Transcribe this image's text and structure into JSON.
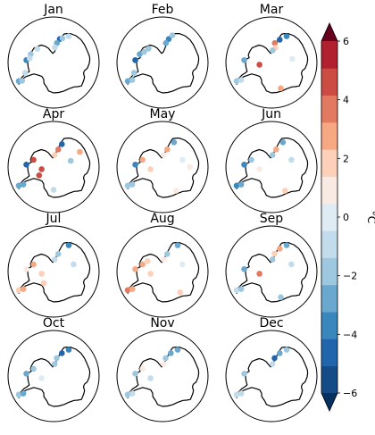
{
  "chart_data": {
    "type": "scatter",
    "panels": [
      {
        "title": "Jan",
        "points": [
          {
            "lon": -62,
            "lat": -64,
            "v": -2.5
          },
          {
            "lon": -60,
            "lat": -66,
            "v": -1.5
          },
          {
            "lon": -70,
            "lat": -70,
            "v": -1.0
          },
          {
            "lon": -95,
            "lat": -72,
            "v": -3.5
          },
          {
            "lon": -110,
            "lat": -74,
            "v": -2.0
          },
          {
            "lon": -100,
            "lat": -74,
            "v": -1.0
          },
          {
            "lon": -130,
            "lat": -76,
            "v": -1.0
          },
          {
            "lon": 165,
            "lat": -74,
            "v": -4.5
          },
          {
            "lon": 170,
            "lat": -77,
            "v": -2.5
          },
          {
            "lon": 160,
            "lat": -73,
            "v": -1.5
          },
          {
            "lon": 175,
            "lat": -80,
            "v": -1.0
          },
          {
            "lon": 150,
            "lat": -70,
            "v": -0.5
          }
        ]
      },
      {
        "title": "Feb",
        "points": [
          {
            "lon": -62,
            "lat": -64,
            "v": -3.0
          },
          {
            "lon": -60,
            "lat": -67,
            "v": -2.0
          },
          {
            "lon": -70,
            "lat": -70,
            "v": -1.5
          },
          {
            "lon": -95,
            "lat": -72,
            "v": -4.5
          },
          {
            "lon": -110,
            "lat": -74,
            "v": -3.0
          },
          {
            "lon": -120,
            "lat": -76,
            "v": -2.0
          },
          {
            "lon": -135,
            "lat": -77,
            "v": -1.5
          },
          {
            "lon": 165,
            "lat": -74,
            "v": -3.5
          },
          {
            "lon": 170,
            "lat": -77,
            "v": -2.5
          },
          {
            "lon": 160,
            "lat": -71,
            "v": -2.0
          }
        ]
      },
      {
        "title": "Mar",
        "points": [
          {
            "lon": -62,
            "lat": -64,
            "v": -1.5
          },
          {
            "lon": -60,
            "lat": -67,
            "v": -1.0
          },
          {
            "lon": -95,
            "lat": -72,
            "v": -3.0
          },
          {
            "lon": -80,
            "lat": -82,
            "v": 5.5
          },
          {
            "lon": 20,
            "lat": -72,
            "v": 3.0
          },
          {
            "lon": 100,
            "lat": -76,
            "v": 0.5
          },
          {
            "lon": 150,
            "lat": -70,
            "v": -3.5
          },
          {
            "lon": 160,
            "lat": -74,
            "v": -5.0
          },
          {
            "lon": 170,
            "lat": -77,
            "v": 4.5
          },
          {
            "lon": 165,
            "lat": -80,
            "v": 2.5
          },
          {
            "lon": 175,
            "lat": -82,
            "v": -2.0
          }
        ]
      },
      {
        "title": "Apr",
        "points": [
          {
            "lon": -62,
            "lat": -64,
            "v": -3.0
          },
          {
            "lon": -60,
            "lat": -67,
            "v": -2.5
          },
          {
            "lon": -95,
            "lat": -72,
            "v": -5.0
          },
          {
            "lon": -110,
            "lat": -76,
            "v": 5.5
          },
          {
            "lon": -80,
            "lat": -82,
            "v": 5.5
          },
          {
            "lon": -60,
            "lat": -79,
            "v": 5.5
          },
          {
            "lon": 0,
            "lat": -75,
            "v": -1.0
          },
          {
            "lon": 110,
            "lat": -78,
            "v": -2.0
          },
          {
            "lon": 120,
            "lat": -70,
            "v": 3.5
          },
          {
            "lon": 160,
            "lat": -74,
            "v": -5.0
          },
          {
            "lon": 165,
            "lat": -78,
            "v": 4.0
          },
          {
            "lon": 175,
            "lat": -82,
            "v": 2.5
          }
        ]
      },
      {
        "title": "May",
        "points": [
          {
            "lon": -62,
            "lat": -64,
            "v": -2.0
          },
          {
            "lon": -60,
            "lat": -67,
            "v": -1.5
          },
          {
            "lon": -95,
            "lat": -72,
            "v": -3.5
          },
          {
            "lon": -110,
            "lat": -76,
            "v": 3.0
          },
          {
            "lon": -80,
            "lat": -82,
            "v": 2.0
          },
          {
            "lon": 30,
            "lat": -72,
            "v": 1.0
          },
          {
            "lon": 90,
            "lat": -72,
            "v": 1.5
          },
          {
            "lon": 110,
            "lat": -76,
            "v": 0.5
          },
          {
            "lon": 155,
            "lat": -72,
            "v": -2.5
          },
          {
            "lon": 165,
            "lat": -78,
            "v": 3.5
          },
          {
            "lon": 175,
            "lat": -82,
            "v": 1.0
          }
        ]
      },
      {
        "title": "Jun",
        "points": [
          {
            "lon": -62,
            "lat": -64,
            "v": -4.0
          },
          {
            "lon": -60,
            "lat": -67,
            "v": -3.0
          },
          {
            "lon": -95,
            "lat": -72,
            "v": -3.5
          },
          {
            "lon": -110,
            "lat": -76,
            "v": -2.0
          },
          {
            "lon": -80,
            "lat": -82,
            "v": 1.5
          },
          {
            "lon": 30,
            "lat": -72,
            "v": 2.0
          },
          {
            "lon": 110,
            "lat": -76,
            "v": -1.0
          },
          {
            "lon": 155,
            "lat": -72,
            "v": -3.0
          },
          {
            "lon": 165,
            "lat": -78,
            "v": 3.5
          },
          {
            "lon": 175,
            "lat": -82,
            "v": -1.5
          }
        ]
      },
      {
        "title": "Jul",
        "points": [
          {
            "lon": -62,
            "lat": -64,
            "v": 2.5
          },
          {
            "lon": -60,
            "lat": -67,
            "v": 3.0
          },
          {
            "lon": -95,
            "lat": -72,
            "v": 1.5
          },
          {
            "lon": -110,
            "lat": -76,
            "v": 3.0
          },
          {
            "lon": -80,
            "lat": -82,
            "v": 2.5
          },
          {
            "lon": -40,
            "lat": -80,
            "v": 2.0
          },
          {
            "lon": 110,
            "lat": -76,
            "v": -1.0
          },
          {
            "lon": 150,
            "lat": -70,
            "v": -3.5
          },
          {
            "lon": 165,
            "lat": -78,
            "v": -2.0
          },
          {
            "lon": 175,
            "lat": -82,
            "v": -1.0
          }
        ]
      },
      {
        "title": "Aug",
        "points": [
          {
            "lon": -62,
            "lat": -64,
            "v": 4.5
          },
          {
            "lon": -60,
            "lat": -67,
            "v": 3.5
          },
          {
            "lon": -95,
            "lat": -72,
            "v": 3.0
          },
          {
            "lon": -110,
            "lat": -76,
            "v": 3.5
          },
          {
            "lon": -125,
            "lat": -78,
            "v": 2.5
          },
          {
            "lon": -80,
            "lat": -82,
            "v": 2.0
          },
          {
            "lon": 40,
            "lat": -72,
            "v": 2.0
          },
          {
            "lon": 110,
            "lat": -76,
            "v": 0.5
          },
          {
            "lon": 150,
            "lat": -70,
            "v": -2.5
          },
          {
            "lon": 165,
            "lat": -78,
            "v": -1.5
          },
          {
            "lon": 175,
            "lat": -82,
            "v": 1.5
          }
        ]
      },
      {
        "title": "Sep",
        "points": [
          {
            "lon": -62,
            "lat": -64,
            "v": -1.0
          },
          {
            "lon": -60,
            "lat": -67,
            "v": -1.5
          },
          {
            "lon": -95,
            "lat": -72,
            "v": -2.5
          },
          {
            "lon": -80,
            "lat": -82,
            "v": 4.5
          },
          {
            "lon": 20,
            "lat": -72,
            "v": -2.0
          },
          {
            "lon": 110,
            "lat": -76,
            "v": -1.0
          },
          {
            "lon": 150,
            "lat": -70,
            "v": -3.0
          },
          {
            "lon": 160,
            "lat": -74,
            "v": 3.5
          },
          {
            "lon": 170,
            "lat": -78,
            "v": 2.5
          },
          {
            "lon": 175,
            "lat": -82,
            "v": -1.5
          }
        ]
      },
      {
        "title": "Oct",
        "points": [
          {
            "lon": -62,
            "lat": -64,
            "v": -2.0
          },
          {
            "lon": -60,
            "lat": -67,
            "v": -2.5
          },
          {
            "lon": -95,
            "lat": -72,
            "v": -3.0
          },
          {
            "lon": -110,
            "lat": -76,
            "v": -2.0
          },
          {
            "lon": -80,
            "lat": -82,
            "v": 0.5
          },
          {
            "lon": 150,
            "lat": -70,
            "v": -3.5
          },
          {
            "lon": 160,
            "lat": -74,
            "v": -4.5
          },
          {
            "lon": 170,
            "lat": -78,
            "v": -2.0
          },
          {
            "lon": 175,
            "lat": -82,
            "v": -1.5
          }
        ]
      },
      {
        "title": "Nov",
        "points": [
          {
            "lon": -62,
            "lat": -64,
            "v": -1.5
          },
          {
            "lon": -60,
            "lat": -67,
            "v": -1.0
          },
          {
            "lon": -95,
            "lat": -72,
            "v": -2.0
          },
          {
            "lon": -110,
            "lat": -76,
            "v": 1.5
          },
          {
            "lon": -80,
            "lat": -82,
            "v": -1.0
          },
          {
            "lon": 150,
            "lat": -70,
            "v": -2.5
          },
          {
            "lon": 160,
            "lat": -74,
            "v": -3.0
          },
          {
            "lon": 170,
            "lat": -78,
            "v": -1.5
          },
          {
            "lon": 175,
            "lat": -82,
            "v": 1.0
          }
        ]
      },
      {
        "title": "Dec",
        "points": [
          {
            "lon": -62,
            "lat": -64,
            "v": -1.0
          },
          {
            "lon": -60,
            "lat": -67,
            "v": -0.5
          },
          {
            "lon": -95,
            "lat": -72,
            "v": -1.5
          },
          {
            "lon": 150,
            "lat": -70,
            "v": -2.0
          },
          {
            "lon": 160,
            "lat": -74,
            "v": -3.0
          },
          {
            "lon": 170,
            "lat": -78,
            "v": -4.5
          },
          {
            "lon": 175,
            "lat": -82,
            "v": -1.0
          }
        ]
      }
    ],
    "colorbar": {
      "label": "°C",
      "vmin": -6,
      "vmax": 6,
      "step": 1,
      "extend": "both",
      "ticks": [
        -6,
        -4,
        -2,
        0,
        2,
        4,
        6
      ],
      "tick_labels": [
        "−6",
        "−4",
        "−2",
        "0",
        "2",
        "4",
        "6"
      ],
      "colors": [
        "#053061",
        "#134c87",
        "#2166ac",
        "#3a87bd",
        "#6aa8d0",
        "#9dc8e0",
        "#c2dcec",
        "#e0ecf3",
        "#f9ebe3",
        "#fcd0b9",
        "#f6a883",
        "#e27a61",
        "#cc4c44",
        "#b0202e",
        "#67001f"
      ]
    },
    "coastline_lonlat": [
      [
        -58,
        -63
      ],
      [
        -60,
        -64
      ],
      [
        -63,
        -65
      ],
      [
        -65,
        -67
      ],
      [
        -67,
        -69
      ],
      [
        -68,
        -71
      ],
      [
        -70,
        -73
      ],
      [
        -75,
        -73
      ],
      [
        -80,
        -73
      ],
      [
        -85,
        -73
      ],
      [
        -90,
        -73
      ],
      [
        -97,
        -73
      ],
      [
        -102,
        -75
      ],
      [
        -108,
        -74
      ],
      [
        -115,
        -74
      ],
      [
        -120,
        -74
      ],
      [
        -127,
        -74
      ],
      [
        -135,
        -75
      ],
      [
        -145,
        -76
      ],
      [
        -153,
        -78
      ],
      [
        -160,
        -80
      ],
      [
        -165,
        -82
      ],
      [
        -175,
        -84
      ],
      [
        175,
        -83
      ],
      [
        170,
        -80
      ],
      [
        168,
        -78
      ],
      [
        165,
        -76
      ],
      [
        162,
        -72
      ],
      [
        160,
        -70
      ],
      [
        155,
        -69
      ],
      [
        150,
        -68
      ],
      [
        140,
        -67
      ],
      [
        130,
        -66.5
      ],
      [
        120,
        -66.5
      ],
      [
        110,
        -66.5
      ],
      [
        100,
        -66
      ],
      [
        95,
        -66
      ],
      [
        88,
        -66.5
      ],
      [
        80,
        -67.5
      ],
      [
        75,
        -69
      ],
      [
        70,
        -69
      ],
      [
        65,
        -67.5
      ],
      [
        60,
        -67
      ],
      [
        50,
        -66
      ],
      [
        45,
        -67.5
      ],
      [
        40,
        -69
      ],
      [
        30,
        -70
      ],
      [
        20,
        -70
      ],
      [
        10,
        -70
      ],
      [
        0,
        -70
      ],
      [
        -10,
        -71
      ],
      [
        -15,
        -73
      ],
      [
        -25,
        -75
      ],
      [
        -30,
        -77
      ],
      [
        -40,
        -78
      ],
      [
        -50,
        -77
      ],
      [
        -60,
        -75
      ],
      [
        -62,
        -72
      ],
      [
        -63,
        -69
      ],
      [
        -62,
        -66
      ],
      [
        -58,
        -63
      ]
    ]
  }
}
